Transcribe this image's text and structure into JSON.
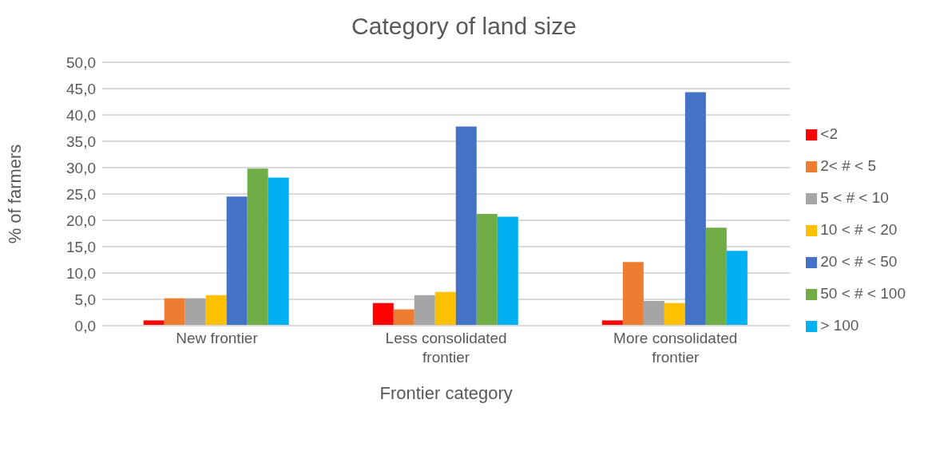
{
  "chart_data": {
    "type": "bar",
    "title": "Category of land size",
    "xlabel": "Frontier category",
    "ylabel": "% of farmers",
    "categories": [
      "New frontier",
      "Less consolidated frontier",
      "More consolidated frontier"
    ],
    "series": [
      {
        "name": "<2",
        "color": "#ff0000",
        "values": [
          1.0,
          4.3,
          1.0
        ]
      },
      {
        "name": "2< # < 5",
        "color": "#ed7d31",
        "values": [
          5.2,
          3.1,
          12.1
        ]
      },
      {
        "name": "5 < # < 10",
        "color": "#a5a5a5",
        "values": [
          5.2,
          5.8,
          4.7
        ]
      },
      {
        "name": "10 < # < 20",
        "color": "#ffc000",
        "values": [
          5.8,
          6.4,
          4.3
        ]
      },
      {
        "name": "20 < # < 50",
        "color": "#4472c4",
        "values": [
          24.5,
          37.8,
          44.3
        ]
      },
      {
        "name": "50 < # < 100",
        "color": "#70ad47",
        "values": [
          29.8,
          21.2,
          18.6
        ]
      },
      {
        "name": "> 100",
        "color": "#00b0f0",
        "values": [
          28.1,
          20.7,
          14.2
        ]
      }
    ],
    "ylim": [
      0,
      50
    ],
    "yticks": [
      {
        "value": 0,
        "label": "0,0"
      },
      {
        "value": 5,
        "label": "5,0"
      },
      {
        "value": 10,
        "label": "10,0"
      },
      {
        "value": 15,
        "label": "15,0"
      },
      {
        "value": 20,
        "label": "20,0"
      },
      {
        "value": 25,
        "label": "25,0"
      },
      {
        "value": 30,
        "label": "30,0"
      },
      {
        "value": 35,
        "label": "35,0"
      },
      {
        "value": 40,
        "label": "40,0"
      },
      {
        "value": 45,
        "label": "45,0"
      },
      {
        "value": 50,
        "label": "50,0"
      }
    ],
    "grid": "y",
    "legend": "right"
  }
}
